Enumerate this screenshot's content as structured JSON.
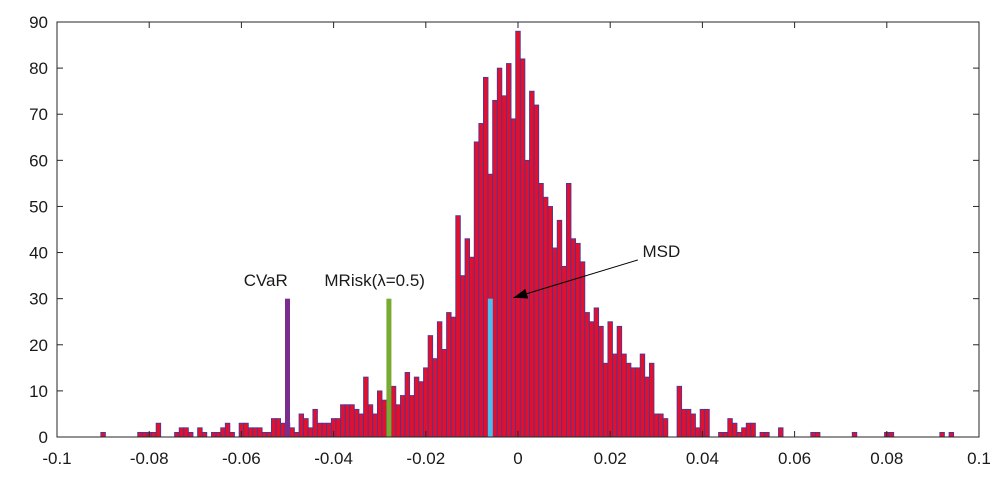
{
  "chart_data": {
    "type": "bar",
    "title": "",
    "xlabel": "",
    "ylabel": "",
    "xlim": [
      -0.1,
      0.1
    ],
    "ylim": [
      0,
      90
    ],
    "grid": false,
    "bin_width": 0.001,
    "bar_fill": "#e3102c",
    "bar_edge": "#3a3aa8",
    "x_ticks": [
      -0.1,
      -0.08,
      -0.06,
      -0.04,
      -0.02,
      0,
      0.02,
      0.04,
      0.06,
      0.08,
      0.1
    ],
    "x_tick_labels": [
      "-0.1",
      "-0.08",
      "-0.06",
      "-0.04",
      "-0.02",
      "0",
      "0.02",
      "0.04",
      "0.06",
      "0.08",
      "0.1"
    ],
    "y_ticks": [
      0,
      10,
      20,
      30,
      40,
      50,
      60,
      70,
      80,
      90
    ],
    "y_tick_labels": [
      "0",
      "10",
      "20",
      "30",
      "40",
      "50",
      "60",
      "70",
      "80",
      "90"
    ],
    "bins": [
      {
        "x": -0.09,
        "count": 1
      },
      {
        "x": -0.082,
        "count": 1
      },
      {
        "x": -0.081,
        "count": 1
      },
      {
        "x": -0.08,
        "count": 1
      },
      {
        "x": -0.079,
        "count": 1
      },
      {
        "x": -0.078,
        "count": 3
      },
      {
        "x": -0.074,
        "count": 1
      },
      {
        "x": -0.073,
        "count": 2
      },
      {
        "x": -0.072,
        "count": 2
      },
      {
        "x": -0.071,
        "count": 1
      },
      {
        "x": -0.069,
        "count": 2
      },
      {
        "x": -0.068,
        "count": 1
      },
      {
        "x": -0.066,
        "count": 1
      },
      {
        "x": -0.065,
        "count": 1
      },
      {
        "x": -0.064,
        "count": 2
      },
      {
        "x": -0.063,
        "count": 3
      },
      {
        "x": -0.062,
        "count": 1
      },
      {
        "x": -0.06,
        "count": 3
      },
      {
        "x": -0.059,
        "count": 3
      },
      {
        "x": -0.058,
        "count": 2
      },
      {
        "x": -0.057,
        "count": 2
      },
      {
        "x": -0.056,
        "count": 2
      },
      {
        "x": -0.055,
        "count": 1
      },
      {
        "x": -0.054,
        "count": 1
      },
      {
        "x": -0.053,
        "count": 4
      },
      {
        "x": -0.052,
        "count": 4
      },
      {
        "x": -0.051,
        "count": 3
      },
      {
        "x": -0.05,
        "count": 3
      },
      {
        "x": -0.049,
        "count": 2
      },
      {
        "x": -0.048,
        "count": 1
      },
      {
        "x": -0.047,
        "count": 5
      },
      {
        "x": -0.046,
        "count": 4
      },
      {
        "x": -0.045,
        "count": 2
      },
      {
        "x": -0.044,
        "count": 6
      },
      {
        "x": -0.043,
        "count": 3
      },
      {
        "x": -0.042,
        "count": 3
      },
      {
        "x": -0.041,
        "count": 3
      },
      {
        "x": -0.04,
        "count": 4
      },
      {
        "x": -0.039,
        "count": 4
      },
      {
        "x": -0.038,
        "count": 7
      },
      {
        "x": -0.037,
        "count": 7
      },
      {
        "x": -0.036,
        "count": 7
      },
      {
        "x": -0.035,
        "count": 6
      },
      {
        "x": -0.034,
        "count": 5
      },
      {
        "x": -0.033,
        "count": 13
      },
      {
        "x": -0.032,
        "count": 7
      },
      {
        "x": -0.031,
        "count": 5
      },
      {
        "x": -0.03,
        "count": 10
      },
      {
        "x": -0.029,
        "count": 8
      },
      {
        "x": -0.028,
        "count": 6
      },
      {
        "x": -0.027,
        "count": 11
      },
      {
        "x": -0.026,
        "count": 7
      },
      {
        "x": -0.025,
        "count": 9
      },
      {
        "x": -0.024,
        "count": 14
      },
      {
        "x": -0.023,
        "count": 9
      },
      {
        "x": -0.022,
        "count": 13
      },
      {
        "x": -0.021,
        "count": 12
      },
      {
        "x": -0.02,
        "count": 15
      },
      {
        "x": -0.019,
        "count": 22
      },
      {
        "x": -0.018,
        "count": 17
      },
      {
        "x": -0.017,
        "count": 25
      },
      {
        "x": -0.016,
        "count": 19
      },
      {
        "x": -0.015,
        "count": 27
      },
      {
        "x": -0.014,
        "count": 26
      },
      {
        "x": -0.013,
        "count": 48
      },
      {
        "x": -0.012,
        "count": 35
      },
      {
        "x": -0.011,
        "count": 43
      },
      {
        "x": -0.01,
        "count": 39
      },
      {
        "x": -0.009,
        "count": 64
      },
      {
        "x": -0.008,
        "count": 68
      },
      {
        "x": -0.007,
        "count": 78
      },
      {
        "x": -0.006,
        "count": 57
      },
      {
        "x": -0.005,
        "count": 73
      },
      {
        "x": -0.004,
        "count": 80
      },
      {
        "x": -0.003,
        "count": 74
      },
      {
        "x": -0.002,
        "count": 81
      },
      {
        "x": -0.001,
        "count": 69
      },
      {
        "x": 0.0,
        "count": 88
      },
      {
        "x": 0.001,
        "count": 82
      },
      {
        "x": 0.002,
        "count": 60
      },
      {
        "x": 0.003,
        "count": 75
      },
      {
        "x": 0.004,
        "count": 72
      },
      {
        "x": 0.005,
        "count": 55
      },
      {
        "x": 0.006,
        "count": 52
      },
      {
        "x": 0.007,
        "count": 50
      },
      {
        "x": 0.008,
        "count": 41
      },
      {
        "x": 0.009,
        "count": 47
      },
      {
        "x": 0.01,
        "count": 37
      },
      {
        "x": 0.011,
        "count": 55
      },
      {
        "x": 0.012,
        "count": 43
      },
      {
        "x": 0.013,
        "count": 42
      },
      {
        "x": 0.014,
        "count": 38
      },
      {
        "x": 0.015,
        "count": 27
      },
      {
        "x": 0.016,
        "count": 25
      },
      {
        "x": 0.017,
        "count": 28
      },
      {
        "x": 0.018,
        "count": 24
      },
      {
        "x": 0.019,
        "count": 16
      },
      {
        "x": 0.02,
        "count": 25
      },
      {
        "x": 0.021,
        "count": 18
      },
      {
        "x": 0.022,
        "count": 24
      },
      {
        "x": 0.023,
        "count": 18
      },
      {
        "x": 0.024,
        "count": 16
      },
      {
        "x": 0.025,
        "count": 15
      },
      {
        "x": 0.026,
        "count": 15
      },
      {
        "x": 0.027,
        "count": 18
      },
      {
        "x": 0.028,
        "count": 13
      },
      {
        "x": 0.029,
        "count": 16
      },
      {
        "x": 0.03,
        "count": 5
      },
      {
        "x": 0.031,
        "count": 5
      },
      {
        "x": 0.032,
        "count": 4
      },
      {
        "x": 0.035,
        "count": 11
      },
      {
        "x": 0.036,
        "count": 6
      },
      {
        "x": 0.037,
        "count": 6
      },
      {
        "x": 0.038,
        "count": 5
      },
      {
        "x": 0.039,
        "count": 2
      },
      {
        "x": 0.04,
        "count": 6
      },
      {
        "x": 0.041,
        "count": 6
      },
      {
        "x": 0.044,
        "count": 1
      },
      {
        "x": 0.045,
        "count": 1
      },
      {
        "x": 0.046,
        "count": 4
      },
      {
        "x": 0.047,
        "count": 3
      },
      {
        "x": 0.048,
        "count": 1
      },
      {
        "x": 0.049,
        "count": 2
      },
      {
        "x": 0.05,
        "count": 3
      },
      {
        "x": 0.051,
        "count": 3
      },
      {
        "x": 0.053,
        "count": 1
      },
      {
        "x": 0.054,
        "count": 1
      },
      {
        "x": 0.057,
        "count": 2
      },
      {
        "x": 0.064,
        "count": 1
      },
      {
        "x": 0.065,
        "count": 1
      },
      {
        "x": 0.073,
        "count": 1
      },
      {
        "x": 0.08,
        "count": 1
      },
      {
        "x": 0.081,
        "count": 1
      },
      {
        "x": 0.092,
        "count": 1
      },
      {
        "x": 0.094,
        "count": 1
      }
    ],
    "markers": [
      {
        "name": "CVaR",
        "x": -0.05,
        "height": 30,
        "color": "#7b2d8e"
      },
      {
        "name": "MRisk(λ=0.5)",
        "x": -0.028,
        "height": 30,
        "color": "#77ac30"
      },
      {
        "name": "MSD",
        "x": -0.006,
        "height": 30,
        "color": "#4dbeee"
      }
    ],
    "annotations": [
      {
        "text": "CVaR",
        "x": -0.0595,
        "y": 32.7,
        "arrow": false
      },
      {
        "text": "MRisk(λ=0.5)",
        "x": -0.042,
        "y": 32.7,
        "arrow": false
      },
      {
        "text": "MSD",
        "x": 0.027,
        "y": 39,
        "arrow": true,
        "arrow_from": [
          0.026,
          38.4
        ],
        "arrow_to": [
          -0.001,
          30.2
        ]
      }
    ]
  }
}
